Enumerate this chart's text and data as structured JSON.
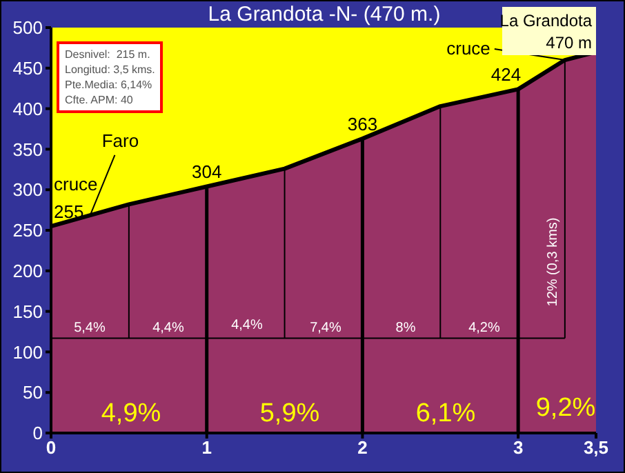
{
  "chart_data": {
    "type": "area",
    "title": "La Grandota -N- (470 m.)",
    "x": [
      0,
      0.5,
      1,
      1.5,
      2,
      2.5,
      3,
      3.3,
      3.5
    ],
    "series": [
      {
        "color": "#993366",
        "values": [
          255,
          282,
          304,
          326,
          363,
          403,
          424,
          460,
          470
        ],
        "value_labels": [
          "255",
          null,
          "304",
          null,
          "363",
          null,
          "424",
          null,
          null
        ]
      }
    ],
    "xlim": [
      0,
      3.5
    ],
    "xticks": [
      0,
      1,
      2,
      3,
      {
        "value": 3.5,
        "label": "3,5"
      }
    ],
    "ylim": [
      0,
      500
    ],
    "yticks": [
      0,
      50,
      100,
      150,
      200,
      250,
      300,
      350,
      400,
      450,
      500
    ],
    "grid": false,
    "legend": false,
    "ref_lines": [
      {
        "axis": "x",
        "value": 0.5,
        "color": "#000000"
      },
      {
        "axis": "x",
        "value": 1,
        "color": "#000000"
      },
      {
        "axis": "x",
        "value": 1.5,
        "color": "#000000"
      },
      {
        "axis": "x",
        "value": 2,
        "color": "#000000"
      },
      {
        "axis": "x",
        "value": 2.5,
        "color": "#000000"
      },
      {
        "axis": "x",
        "value": 3,
        "color": "#000000"
      },
      {
        "axis": "x",
        "value": 3.3,
        "color": "#000000"
      },
      {
        "axis": "y",
        "value": 117,
        "color": "#000000"
      }
    ],
    "annotations": [
      "Desnivel:  215 m.",
      "Longitud: 3,5 kms.",
      "Pte.Media: 6,14%",
      "Cfte. APM: 40",
      {
        "text": "cruce",
        "x": 0,
        "y": 255
      },
      {
        "text": "Faro",
        "x": 0.25,
        "y": 268
      },
      {
        "text": "cruce",
        "x": 3.3,
        "y": 460
      },
      {
        "text": "La Grandota 470 m",
        "x": 3.5,
        "y": 470
      },
      "5,4%",
      "4,4%",
      "4,4%",
      "7,4%",
      "8%",
      "4,2%",
      "12% (0,3 kms)",
      "4,9%",
      "5,9%",
      "6,1%",
      "9,2%"
    ]
  }
}
